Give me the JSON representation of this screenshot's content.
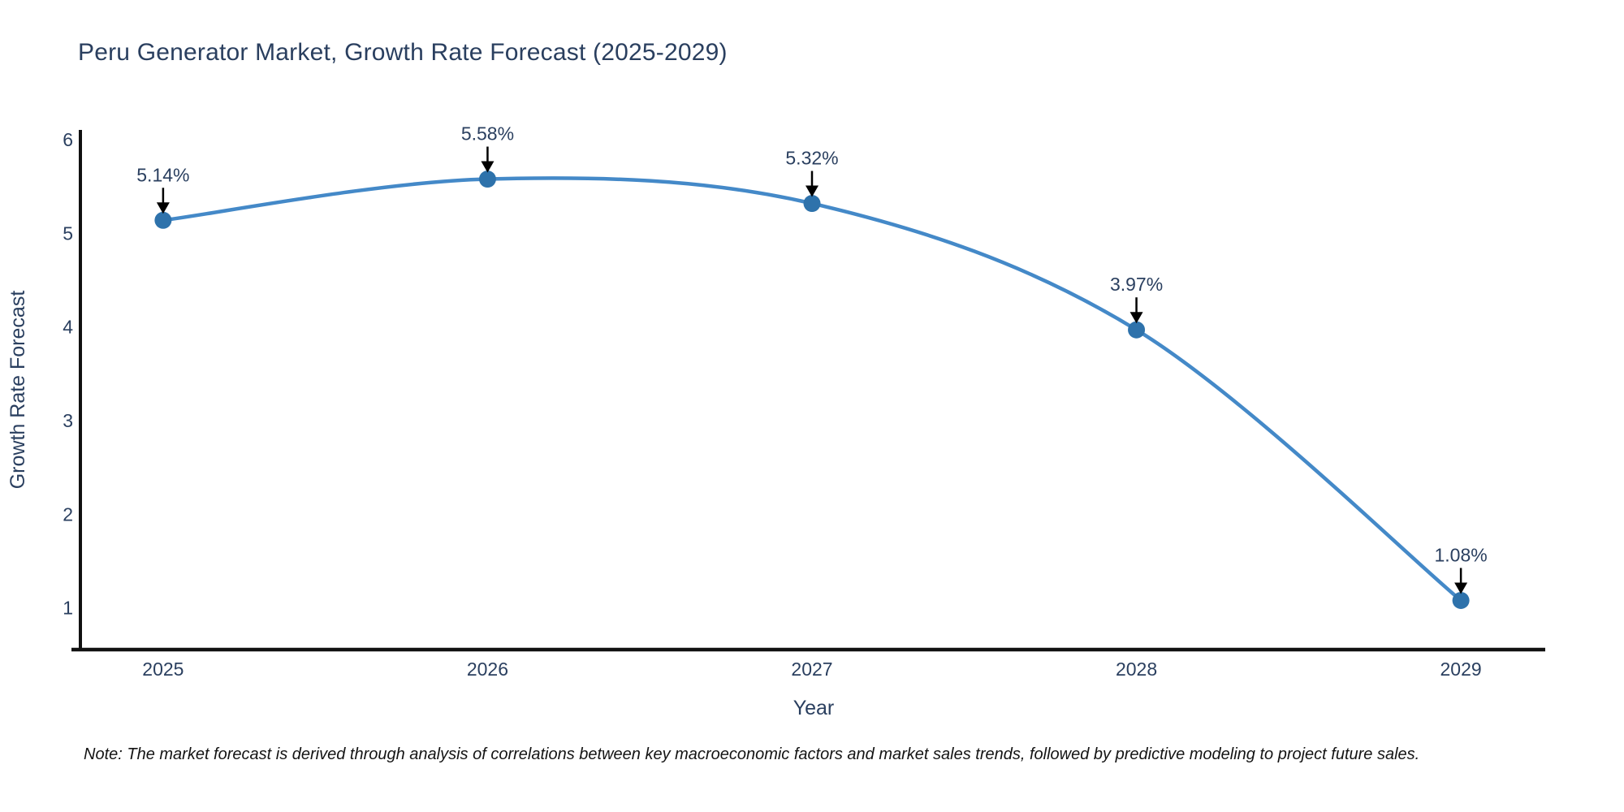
{
  "chart_data": {
    "type": "line",
    "title": "Peru Generator Market, Growth Rate Forecast (2025-2029)",
    "xlabel": "Year",
    "ylabel": "Growth Rate Forecast",
    "x": [
      2025,
      2026,
      2027,
      2028,
      2029
    ],
    "values": [
      5.14,
      5.58,
      5.32,
      3.97,
      1.08
    ],
    "point_labels": [
      "5.14%",
      "5.58%",
      "5.32%",
      "3.97%",
      "1.08%"
    ],
    "series_name": "Growth Rate Forecast",
    "x_tick_labels": [
      "2025",
      "2026",
      "2027",
      "2028",
      "2029"
    ],
    "y_tick_labels": [
      "1",
      "2",
      "3",
      "4",
      "5",
      "6"
    ],
    "y_ticks": [
      1,
      2,
      3,
      4,
      5,
      6
    ],
    "xlim": [
      2024.74,
      2029.26
    ],
    "ylim": [
      0.555,
      6.105
    ],
    "line_shape": "spline",
    "grid": false,
    "legend_position": "none",
    "annotation_style": "value label with downward arrow to each marker",
    "colors": {
      "line": "#4489c8",
      "marker": "#2e72ab",
      "axis_line": "#111111",
      "chart_text": "#2a3f5f",
      "annotation_text": "#2a3f5f",
      "arrow": "#000000",
      "background": "#ffffff"
    },
    "note": "Note: The market forecast is derived through analysis of correlations between key macroeconomic factors and market sales trends, followed by predictive modeling to project future sales."
  }
}
